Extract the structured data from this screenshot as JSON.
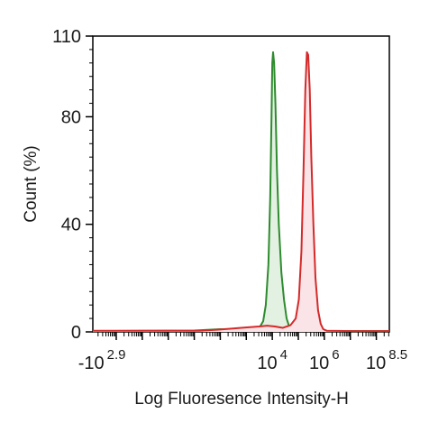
{
  "chart_data": {
    "type": "area",
    "title": "",
    "xlabel": "Log Fluoresence Intensity-H",
    "ylabel": "Count  (%)",
    "x_scale": "log",
    "xlim_log10": [
      -2.9,
      8.5
    ],
    "ylim": [
      0,
      110
    ],
    "y_ticks": [
      0,
      40,
      80,
      110
    ],
    "y_tick_labels": [
      "0",
      "40",
      "80",
      "110"
    ],
    "x_tick_labels": [
      {
        "base": "-10",
        "exp": "2.9"
      },
      {
        "base": "10",
        "exp": "4"
      },
      {
        "base": "10",
        "exp": "6"
      },
      {
        "base": "10",
        "exp": "8.5"
      }
    ],
    "grid": false,
    "series": [
      {
        "color": "#2e8b2e",
        "fill": "#e3f1e3",
        "points": [
          [
            -2.9,
            0.3
          ],
          [
            -1.0,
            0.4
          ],
          [
            1.0,
            0.5
          ],
          [
            2.0,
            1.0
          ],
          [
            2.6,
            0.8
          ],
          [
            3.0,
            0.6
          ],
          [
            3.3,
            0.8
          ],
          [
            3.5,
            1.5
          ],
          [
            3.65,
            4
          ],
          [
            3.75,
            10
          ],
          [
            3.85,
            25
          ],
          [
            3.92,
            50
          ],
          [
            3.97,
            80
          ],
          [
            4.0,
            100
          ],
          [
            4.03,
            104
          ],
          [
            4.07,
            100
          ],
          [
            4.12,
            85
          ],
          [
            4.18,
            60
          ],
          [
            4.25,
            40
          ],
          [
            4.35,
            22
          ],
          [
            4.45,
            12
          ],
          [
            4.55,
            5
          ],
          [
            4.65,
            2
          ],
          [
            4.8,
            0.8
          ],
          [
            5.0,
            0.5
          ],
          [
            6.0,
            0.3
          ],
          [
            7.0,
            0.3
          ],
          [
            8.5,
            0.3
          ]
        ]
      },
      {
        "color": "#d42a2a",
        "fill": "#fbe4e7",
        "points": [
          [
            -2.9,
            0.4
          ],
          [
            1.2,
            0.4
          ],
          [
            2.0,
            0.9
          ],
          [
            2.8,
            1.5
          ],
          [
            3.2,
            1.8
          ],
          [
            3.5,
            2.0
          ],
          [
            3.8,
            2.3
          ],
          [
            4.1,
            2.0
          ],
          [
            4.4,
            1.5
          ],
          [
            4.7,
            2.5
          ],
          [
            4.9,
            5
          ],
          [
            5.02,
            12
          ],
          [
            5.12,
            30
          ],
          [
            5.2,
            60
          ],
          [
            5.27,
            90
          ],
          [
            5.33,
            104
          ],
          [
            5.38,
            103
          ],
          [
            5.44,
            90
          ],
          [
            5.5,
            65
          ],
          [
            5.58,
            40
          ],
          [
            5.66,
            20
          ],
          [
            5.76,
            8
          ],
          [
            5.86,
            3
          ],
          [
            5.96,
            1.0
          ],
          [
            6.1,
            0.4
          ],
          [
            7.0,
            0.3
          ],
          [
            8.5,
            0.3
          ]
        ]
      }
    ]
  }
}
